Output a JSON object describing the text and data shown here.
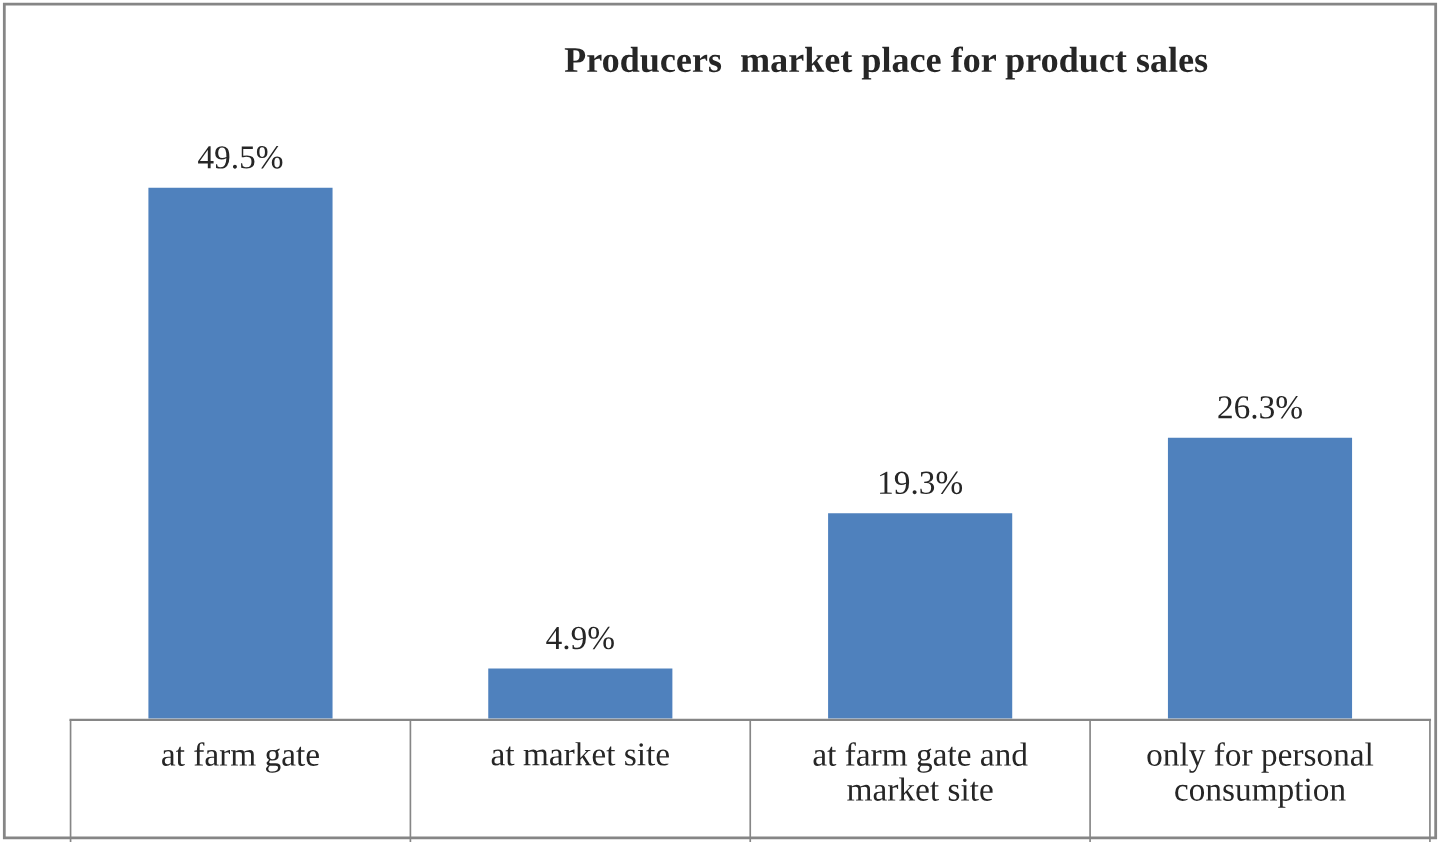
{
  "chart_data": {
    "type": "bar",
    "title": "Producers  market place for product sales",
    "categories": [
      "at farm gate",
      "at market site",
      "at farm gate and\nmarket site",
      "only for personal\nconsumption"
    ],
    "values": [
      49.5,
      4.9,
      19.3,
      26.3
    ],
    "value_labels": [
      "49.5%",
      "4.9%",
      "19.3%",
      "26.3%"
    ],
    "color": "#4f81bd",
    "grid": false,
    "legend": false
  }
}
